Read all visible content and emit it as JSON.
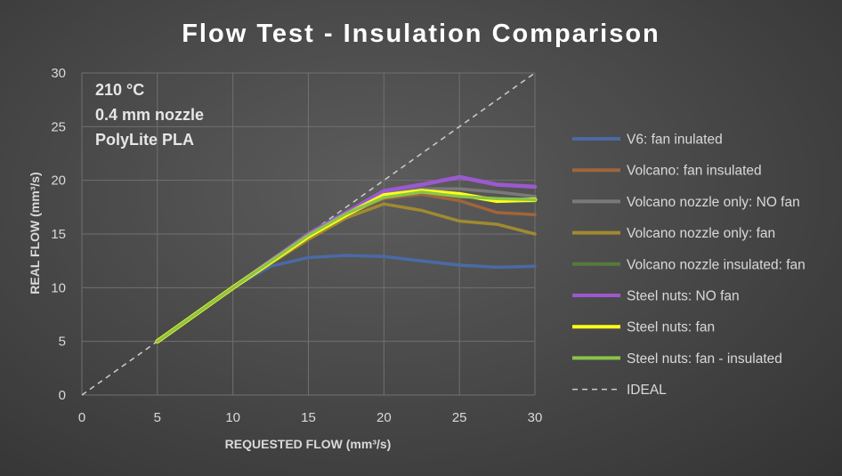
{
  "chart_data": {
    "type": "line",
    "title": "Flow Test - Insulation Comparison",
    "xlabel": "REQUESTED FLOW (mm³/s)",
    "ylabel": "REAL FLOW (mm³/s)",
    "xlim": [
      0,
      30
    ],
    "ylim": [
      0,
      30
    ],
    "xticks": [
      "0",
      "5",
      "10",
      "15",
      "20",
      "25",
      "30"
    ],
    "yticks": [
      "0",
      "5",
      "10",
      "15",
      "20",
      "25",
      "30"
    ],
    "grid": "vertical and horizontal major gridlines",
    "legend_position": "right",
    "annotations": [
      "210 °C",
      "0.4 mm nozzle",
      "PolyLite PLA"
    ],
    "series": [
      {
        "name": "V6: fan inulated",
        "color": "#4a6aa5",
        "x": [
          5,
          10,
          12.5,
          15,
          17.5,
          20,
          22.5,
          25,
          27.5,
          30
        ],
        "y": [
          5,
          10,
          12,
          12.8,
          13,
          12.9,
          12.5,
          12.1,
          11.9,
          12
        ]
      },
      {
        "name": "Volcano: fan insulated",
        "color": "#a0653a",
        "x": [
          5,
          10,
          15,
          17.5,
          20,
          22.5,
          25,
          27.5,
          30
        ],
        "y": [
          5,
          10,
          15,
          16.8,
          18.3,
          18.7,
          18.1,
          17,
          16.8
        ]
      },
      {
        "name": "Volcano nozzle only: NO fan",
        "color": "#7a7a7a",
        "x": [
          5,
          10,
          15,
          17.5,
          20,
          22.5,
          25,
          27.5,
          30
        ],
        "y": [
          5,
          10,
          15,
          17,
          18.7,
          19.2,
          19.2,
          18.9,
          18.5
        ]
      },
      {
        "name": "Volcano nozzle only: fan",
        "color": "#a08a30",
        "x": [
          5,
          10,
          15,
          17.5,
          20,
          22.5,
          25,
          27.5,
          30
        ],
        "y": [
          5,
          10,
          14.5,
          16.5,
          17.8,
          17.2,
          16.2,
          15.9,
          15
        ]
      },
      {
        "name": "Volcano nozzle insulated: fan",
        "color": "#557a3c",
        "x": [
          5,
          10,
          15,
          17.5,
          20,
          22.5,
          25,
          27.5,
          30
        ],
        "y": [
          5,
          10,
          15,
          17,
          18.5,
          19,
          18.5,
          18.3,
          18
        ]
      },
      {
        "name": "Steel nuts: NO fan",
        "color": "#9b59d0",
        "x": [
          5,
          10,
          15,
          17.5,
          20,
          22.5,
          25,
          27.5,
          30
        ],
        "y": [
          5,
          10,
          15,
          17,
          19,
          19.6,
          20.3,
          19.6,
          19.4
        ]
      },
      {
        "name": "Steel nuts: fan",
        "color": "#ffff1a",
        "x": [
          5,
          10,
          15,
          17.5,
          20,
          22.5,
          25,
          27.5,
          30
        ],
        "y": [
          5,
          10,
          14.8,
          16.8,
          18.6,
          19,
          18.7,
          18.1,
          18.2
        ]
      },
      {
        "name": "Steel nuts: fan - insulated",
        "color": "#8bc34a",
        "x": [
          5,
          10,
          15,
          17.5,
          20,
          22.5,
          25,
          27.5,
          30
        ],
        "y": [
          5,
          10,
          14.9,
          16.9,
          18.4,
          18.9,
          18.5,
          18.3,
          18.2
        ]
      },
      {
        "name": "IDEAL",
        "color": "#cccccc",
        "dashed": true,
        "x": [
          0,
          30
        ],
        "y": [
          0,
          30
        ]
      }
    ]
  }
}
